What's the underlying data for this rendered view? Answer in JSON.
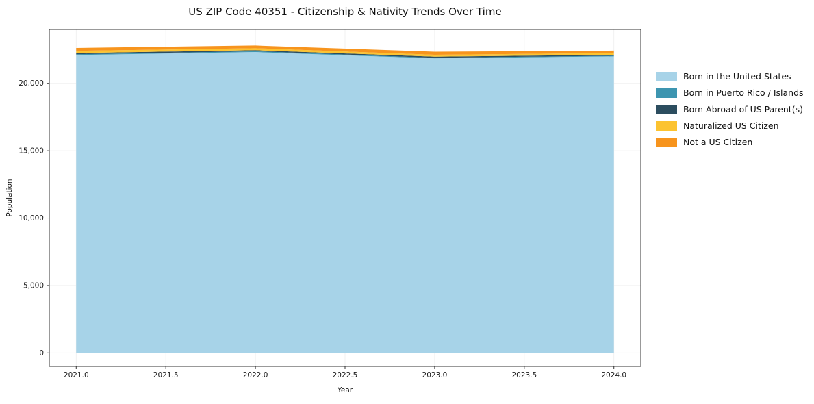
{
  "title": "US ZIP Code 40351 - Citizenship & Nativity Trends Over Time",
  "chart_data": {
    "type": "area",
    "stacked": true,
    "title": "US ZIP Code 40351 - Citizenship & Nativity Trends Over Time",
    "xlabel": "Year",
    "ylabel": "Population",
    "x": [
      2021,
      2022,
      2023,
      2024
    ],
    "series": [
      {
        "name": "Born in the United States",
        "color": "#a7d3e8",
        "values": [
          22100,
          22320,
          21850,
          22000
        ]
      },
      {
        "name": "Born in Puerto Rico / Islands",
        "color": "#3d95b0",
        "values": [
          60,
          60,
          50,
          50
        ]
      },
      {
        "name": "Born Abroad of US Parent(s)",
        "color": "#2c4d5f",
        "values": [
          90,
          80,
          80,
          70
        ]
      },
      {
        "name": "Naturalized US Citizen",
        "color": "#fcc330",
        "values": [
          160,
          150,
          140,
          130
        ]
      },
      {
        "name": "Not a US Citizen",
        "color": "#f7941d",
        "values": [
          220,
          200,
          230,
          180
        ]
      }
    ],
    "xlim": [
      2020.85,
      2024.15
    ],
    "ylim": [
      -1000,
      24000
    ],
    "x_ticks": [
      {
        "v": 2021.0,
        "label": "2021.0"
      },
      {
        "v": 2021.5,
        "label": "2021.5"
      },
      {
        "v": 2022.0,
        "label": "2022.0"
      },
      {
        "v": 2022.5,
        "label": "2022.5"
      },
      {
        "v": 2023.0,
        "label": "2023.0"
      },
      {
        "v": 2023.5,
        "label": "2023.5"
      },
      {
        "v": 2024.0,
        "label": "2024.0"
      }
    ],
    "y_ticks": [
      {
        "v": 0,
        "label": "0"
      },
      {
        "v": 5000,
        "label": "5,000"
      },
      {
        "v": 10000,
        "label": "10,000"
      },
      {
        "v": 15000,
        "label": "15,000"
      },
      {
        "v": 20000,
        "label": "20,000"
      }
    ],
    "grid": true,
    "legend_position": "right"
  },
  "style": {
    "grid_color": "#ededed",
    "axis_color": "#333333",
    "tick_text_color": "#1a1a1a"
  }
}
